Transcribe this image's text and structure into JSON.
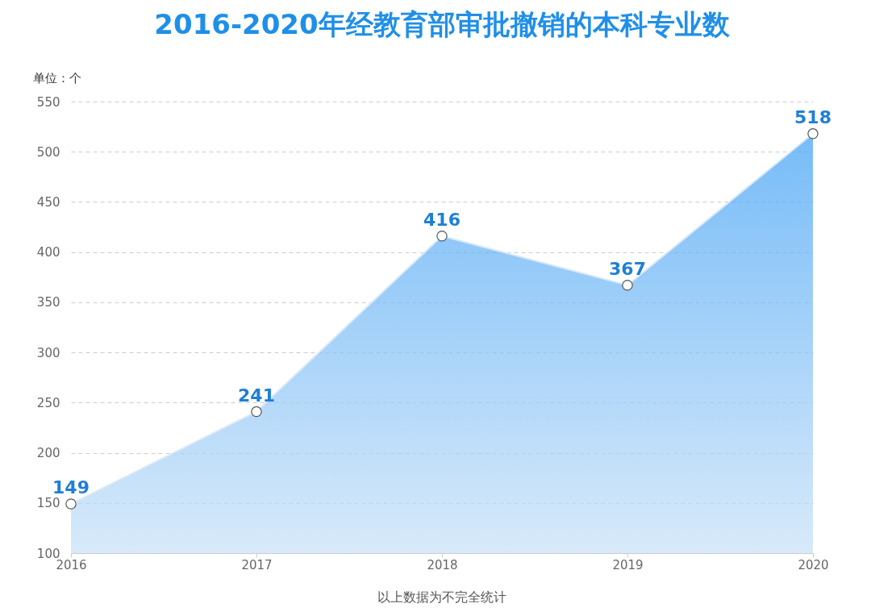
{
  "chart_data": {
    "type": "area",
    "title": "2016-2020年经教育部审批撤销的本科专业数",
    "ylabel": "单位：个",
    "categories": [
      "2016",
      "2017",
      "2018",
      "2019",
      "2020"
    ],
    "series": [
      {
        "color": "#3d9ff5",
        "values": [
          149,
          241,
          416,
          367,
          518
        ]
      }
    ],
    "ylim": [
      100,
      550
    ],
    "yticks": [
      100,
      150,
      200,
      250,
      300,
      350,
      400,
      450,
      500,
      550
    ],
    "grid": "y",
    "marker": "circle",
    "data_labels": true,
    "annotations": [
      "以上数据为不完全统计"
    ]
  }
}
